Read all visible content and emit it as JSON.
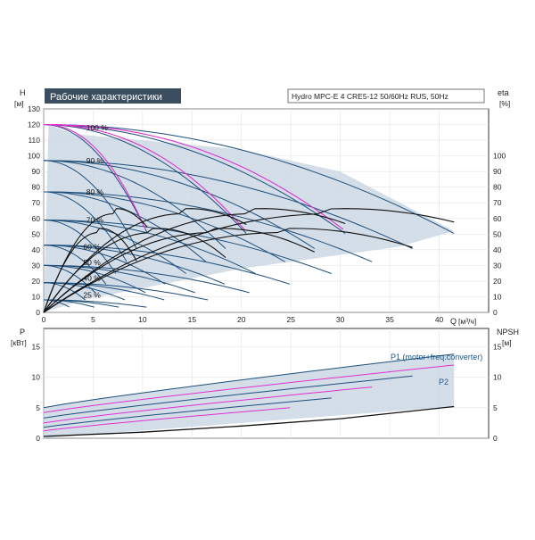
{
  "chart_data": [
    {
      "type": "line",
      "title": "Рабочие характеристики",
      "subtitle": "Hydro MPC-E 4 CRE5-12 50/60Hz RUS, 50Hz",
      "ylabel_left": "H",
      "ylabel_left_unit": "[м]",
      "ylabel_right": "eta",
      "ylabel_right_unit": "[%]",
      "xlabel": "Q",
      "xlabel_unit": "[м³/ч]",
      "xlim": [
        0,
        45
      ],
      "ylim_left": [
        0,
        130
      ],
      "ylim_right": [
        0,
        130
      ],
      "x_ticks": [
        0,
        5,
        10,
        15,
        20,
        25,
        30,
        35,
        40
      ],
      "y_ticks_left": [
        0,
        10,
        20,
        30,
        40,
        50,
        60,
        70,
        80,
        90,
        100,
        110,
        120,
        130
      ],
      "y_ticks_right": [
        0,
        10,
        20,
        30,
        40,
        50,
        60,
        70,
        80,
        90,
        100
      ],
      "grid": true,
      "speed_labels": [
        {
          "text": "100 %",
          "x": 2.5,
          "y": 118
        },
        {
          "text": "90 %",
          "x": 2.5,
          "y": 97
        },
        {
          "text": "80 %",
          "x": 2.5,
          "y": 77
        },
        {
          "text": "70 %",
          "x": 2.5,
          "y": 59
        },
        {
          "text": "60 %",
          "x": 2.2,
          "y": 42
        },
        {
          "text": "50 %",
          "x": 2.2,
          "y": 32
        },
        {
          "text": "40 %",
          "x": 2.2,
          "y": 22
        },
        {
          "text": "25 %",
          "x": 2.2,
          "y": 11
        }
      ],
      "speed_curves": [
        {
          "name": "100 %",
          "h0": 120,
          "qmax": [
            10.5,
            20.5,
            30.5,
            41.5
          ]
        },
        {
          "name": "90 %",
          "h0": 97,
          "qmax": [
            9.4,
            18.4,
            27.4,
            37.3
          ]
        },
        {
          "name": "80 %",
          "h0": 77,
          "qmax": [
            8.4,
            16.4,
            24.4,
            33.2
          ]
        },
        {
          "name": "70 %",
          "h0": 59,
          "qmax": [
            7.3,
            14.4,
            21.4,
            29.1
          ]
        },
        {
          "name": "60 %",
          "h0": 43,
          "qmax": [
            6.3,
            12.3,
            18.3,
            24.9
          ]
        },
        {
          "name": "50 %",
          "h0": 30,
          "qmax": [
            5.2,
            10.3,
            15.3,
            20.8
          ]
        },
        {
          "name": "40 %",
          "h0": 19,
          "qmax": [
            4.2,
            8.2,
            12.2,
            16.6
          ]
        },
        {
          "name": "25 %",
          "h0": 8,
          "qmax": [
            2.6,
            5.1,
            7.6,
            10.4
          ]
        }
      ],
      "setpoint_curves": [
        {
          "h0": 120,
          "pumps": [
            [
              10.3,
              53
            ],
            [
              20.3,
              53
            ],
            [
              30.3,
              53
            ]
          ]
        }
      ],
      "efficiency_curves": [
        {
          "peak": 63,
          "q_peak": [
            7,
            14,
            21,
            29
          ],
          "q_end": [
            10.5,
            20.5,
            30.5,
            41.5
          ]
        },
        {
          "peak": 51,
          "q_peak": [
            5.5,
            11,
            17,
            24
          ],
          "q_end": [
            9.4,
            18.4,
            27.4,
            37.3
          ]
        }
      ],
      "shaded_region": {
        "q": [
          0,
          0.5,
          3,
          10,
          20,
          30,
          41.5,
          36,
          28,
          20,
          12,
          4,
          0
        ],
        "h": [
          0,
          120,
          114,
          110,
          104,
          90,
          52,
          42,
          35,
          28,
          18,
          8,
          0
        ]
      }
    },
    {
      "type": "line",
      "ylabel_left": "P",
      "ylabel_left_unit": "[кВт]",
      "ylabel_right": "NPSH",
      "ylabel_right_unit": "[м]",
      "xlim": [
        0,
        45
      ],
      "ylim_left": [
        0,
        18
      ],
      "y_ticks_left": [
        0,
        5,
        10,
        15
      ],
      "y_ticks_right": [
        0,
        5,
        10,
        15
      ],
      "legend": [
        "P1 (motor+freq.converter)",
        "P2"
      ],
      "power_curves": [
        {
          "p0": 5.0,
          "p_end": 13.8,
          "q_end": 41.5
        },
        {
          "p0": 4.2,
          "p_end": 12.0,
          "q_end": 41.5
        },
        {
          "p0": 3.3,
          "p_end": 10.2,
          "q_end": 37.3
        },
        {
          "p0": 2.5,
          "p_end": 8.4,
          "q_end": 33.2
        },
        {
          "p0": 1.8,
          "p_end": 6.6,
          "q_end": 29.1
        },
        {
          "p0": 1.2,
          "p_end": 5.0,
          "q_end": 24.9
        }
      ],
      "npsh_curve": {
        "q": [
          0,
          10,
          20,
          30,
          41.5
        ],
        "h": [
          0.3,
          1.0,
          2.0,
          3.2,
          5.2
        ]
      }
    }
  ]
}
